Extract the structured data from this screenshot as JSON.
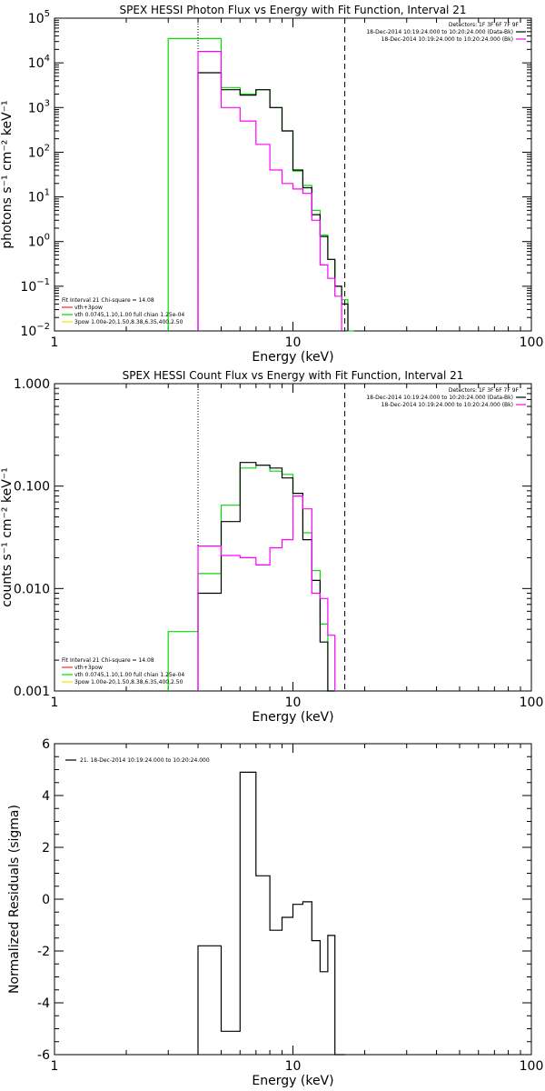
{
  "colors": {
    "data": "#000000",
    "bk": "#000000",
    "model": "#ff00ff",
    "total": "#00dd00",
    "thermal": "#ff2a2a",
    "power": "#e8e800"
  },
  "chart_data": [
    {
      "id": "photon",
      "type": "line",
      "title": "SPEX HESSI Photon Flux vs Energy with Fit Function, Interval 21",
      "xlabel": "Energy (keV)",
      "ylabel": "photons s⁻¹ cm⁻² keV⁻¹",
      "xlim": [
        1,
        100
      ],
      "ylim": [
        0.01,
        100000
      ],
      "xscale": "log",
      "yscale": "log",
      "xtick_labels": [
        "1",
        "10",
        "100"
      ],
      "ytick_values": [
        0.01,
        0.1,
        1,
        10,
        100,
        1000,
        10000,
        100000
      ],
      "ytick_labels": [
        "10⁻²",
        "10⁻¹",
        "10⁰",
        "10¹",
        "10²",
        "10³",
        "10⁴",
        "10⁵"
      ],
      "vlines": [
        {
          "x": 4.0,
          "style": "dotted"
        },
        {
          "x": 16.5,
          "style": "dashed"
        }
      ],
      "legend_top_right": [
        "Detectors: 1F 3F 6F 7F 9F",
        "18-Dec-2014 10:19:24.000 to 10:20:24.000 (Data-Bk)",
        "18-Dec-2014 10:19:24.000 to 10:20:24.000 (Bk)"
      ],
      "legend_bottom_left": [
        "Fit Interval 21   Chi-square = 14.08",
        "vth+3pow",
        "vth 0.0745,1.10,1.00  full chian 1.25e-04",
        "3pow 1.00e-20,1.50,8.38,6.35,400,2.50"
      ],
      "edges": [
        3,
        4,
        5,
        6,
        7,
        8,
        9,
        10,
        11,
        12,
        13,
        14,
        15,
        16,
        17,
        18
      ],
      "series": [
        {
          "name": "vth+3pow",
          "color": "total",
          "values": [
            35000,
            35000,
            2800,
            2000,
            2500,
            1000,
            300,
            38,
            18,
            5,
            1.4,
            0.4,
            0.1,
            0.05,
            0.01
          ]
        },
        {
          "name": "(Data-Bk)",
          "color": "data",
          "values": [
            null,
            6000,
            2500,
            1900,
            2500,
            1000,
            300,
            40,
            16,
            4,
            1.3,
            0.4,
            0.1,
            0.04,
            null
          ]
        },
        {
          "name": "(Bk)",
          "color": "model",
          "values": [
            null,
            18000,
            1000,
            500,
            150,
            40,
            20,
            15,
            12,
            3,
            0.3,
            0.15,
            0.06,
            null,
            null
          ]
        }
      ]
    },
    {
      "id": "count",
      "type": "line",
      "title": "SPEX HESSI Count Flux vs Energy with Fit Function, Interval 21",
      "xlabel": "Energy (keV)",
      "ylabel": "counts s⁻¹ cm⁻² keV⁻¹",
      "xlim": [
        1,
        100
      ],
      "ylim": [
        0.001,
        1
      ],
      "xscale": "log",
      "yscale": "log",
      "xtick_labels": [
        "1",
        "10",
        "100"
      ],
      "ytick_values": [
        0.001,
        0.01,
        0.1,
        1
      ],
      "ytick_labels": [
        "0.001",
        "0.010",
        "0.100",
        "1.000"
      ],
      "vlines": [
        {
          "x": 4.0,
          "style": "dotted"
        },
        {
          "x": 16.5,
          "style": "dashed"
        }
      ],
      "legend_top_right": [
        "Detectors: 1F 3F 6F 7F 9F",
        "18-Dec-2014 10:19:24.000 to 10:20:24.000 (Data-Bk)",
        "18-Dec-2014 10:19:24.000 to 10:20:24.000 (Bk)"
      ],
      "legend_bottom_left": [
        "Fit Interval 21   Chi-square = 14.08",
        "vth+3pow",
        "vth 0.0745,1.10,1.00  full chian 1.25e-04",
        "3pow 1.00e-20,1.50,8.38,6.35,400,2.50"
      ],
      "edges": [
        3,
        4,
        5,
        6,
        7,
        8,
        9,
        10,
        11,
        12,
        13,
        14,
        15,
        16,
        17,
        18
      ],
      "series": [
        {
          "name": "vth+3pow",
          "color": "total",
          "values": [
            0.0038,
            0.014,
            0.065,
            0.15,
            0.16,
            0.14,
            0.13,
            0.08,
            0.035,
            0.015,
            0.0045,
            0.001,
            null,
            null,
            null
          ]
        },
        {
          "name": "(Data-Bk)",
          "color": "data",
          "values": [
            null,
            0.009,
            0.045,
            0.17,
            0.16,
            0.15,
            0.12,
            0.085,
            0.03,
            0.012,
            0.003,
            0.001,
            null,
            null,
            null
          ]
        },
        {
          "name": "(Bk)",
          "color": "model",
          "values": [
            null,
            0.026,
            0.021,
            0.02,
            0.017,
            0.025,
            0.03,
            0.08,
            0.06,
            0.009,
            0.008,
            0.0035,
            null,
            null,
            null
          ]
        }
      ]
    },
    {
      "id": "resid",
      "type": "line",
      "title": "",
      "xlabel": "Energy (keV)",
      "ylabel": "Normalized Residuals (sigma)",
      "xlim": [
        1,
        100
      ],
      "ylim": [
        -6,
        6
      ],
      "xscale": "log",
      "yscale": "linear",
      "xtick_labels": [
        "1",
        "10",
        "100"
      ],
      "ytick_values": [
        -6,
        -4,
        -2,
        0,
        2,
        4,
        6
      ],
      "ytick_labels": [
        "-6",
        "-4",
        "-2",
        "0",
        "2",
        "4",
        "6"
      ],
      "vlines": [],
      "legend_top_left": [
        "21. 18-Dec-2014 10:19:24.000 to 10:20:24.000"
      ],
      "edges": [
        4,
        5,
        6,
        7,
        8,
        9,
        10,
        11,
        12,
        13,
        14,
        15,
        16,
        16.5
      ],
      "series": [
        {
          "name": "21. 18-Dec-2014 10:19:24.000 to 10:20:24.000",
          "color": "data",
          "values": [
            -1.8,
            -5.1,
            4.9,
            0.9,
            -1.2,
            -0.7,
            -0.2,
            -0.1,
            -1.6,
            -2.8,
            -1.4,
            -6,
            -6
          ]
        }
      ]
    }
  ]
}
